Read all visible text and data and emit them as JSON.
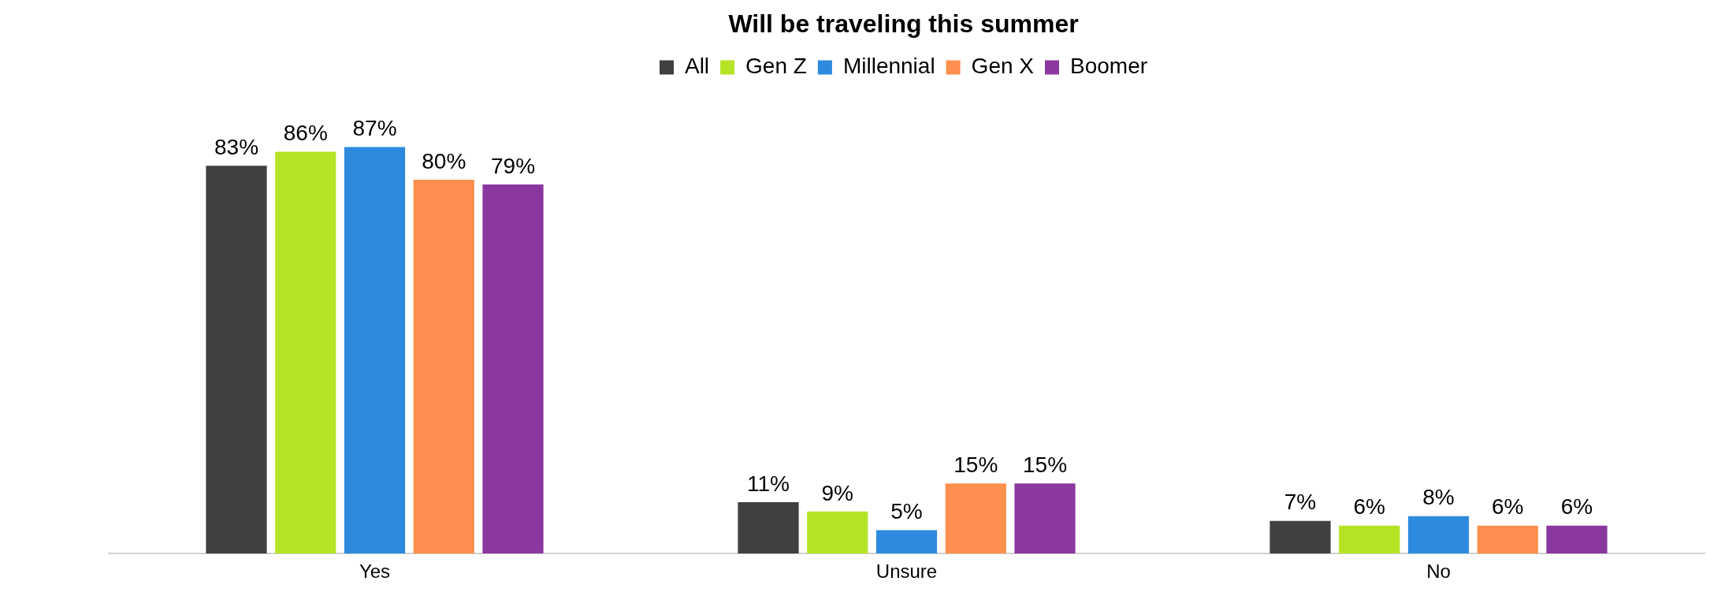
{
  "chart_data": {
    "type": "bar",
    "title": "Will be traveling this summer",
    "categories": [
      "Yes",
      "Unsure",
      "No"
    ],
    "series": [
      {
        "name": "All",
        "color": "#404040",
        "values": [
          83,
          11,
          7
        ],
        "value_labels": [
          "83%",
          "11%",
          "7%"
        ]
      },
      {
        "name": "Gen Z",
        "color": "#b5e325",
        "values": [
          86,
          9,
          6
        ],
        "value_labels": [
          "86%",
          "9%",
          "6%"
        ]
      },
      {
        "name": "Millennial",
        "color": "#2e8ade",
        "values": [
          87,
          5,
          8
        ],
        "value_labels": [
          "87%",
          "5%",
          "8%"
        ]
      },
      {
        "name": "Gen X",
        "color": "#ff8f4c",
        "values": [
          80,
          15,
          6
        ],
        "value_labels": [
          "80%",
          "15%",
          "6%"
        ]
      },
      {
        "name": "Boomer",
        "color": "#8b37a0",
        "values": [
          79,
          15,
          6
        ],
        "value_labels": [
          "79%",
          "15%",
          "6%"
        ]
      }
    ],
    "legend": "top",
    "grid": false,
    "tick_labels": "x"
  }
}
